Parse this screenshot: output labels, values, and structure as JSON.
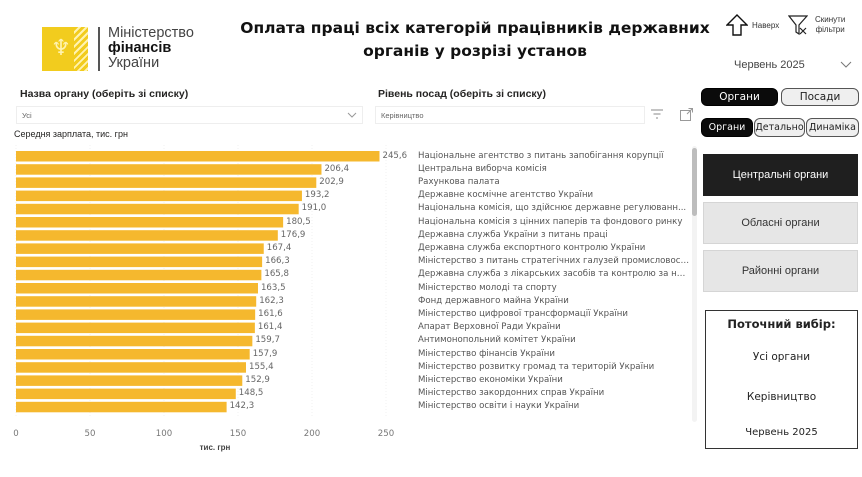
{
  "logo": {
    "line1": "Міністерство",
    "line2": "фінансів",
    "line3": "України"
  },
  "header": {
    "title_line1": "Оплата праці всіх категорій працівників державних",
    "title_line2": "органів у розрізі установ",
    "up_label": "Наверх",
    "reset_label_1": "Скинути",
    "reset_label_2": "фільтри",
    "period": "Червень 2025"
  },
  "filters": {
    "organ_label": "Назва органу (оберіть зі списку)",
    "organ_value": "Усі",
    "level_label": "Рівень посад (оберіть зі списку)",
    "level_value": "Керівництво"
  },
  "right_panel": {
    "toggle_top": [
      {
        "label": "Органи",
        "active": true
      },
      {
        "label": "Посади",
        "active": false
      }
    ],
    "toggle_view": [
      {
        "label": "Органи",
        "active": true
      },
      {
        "label": "Детально",
        "active": false
      },
      {
        "label": "Динаміка",
        "active": false
      }
    ],
    "segments": [
      {
        "label": "Центральні органи",
        "active": true
      },
      {
        "label": "Обласні органи",
        "active": false
      },
      {
        "label": "Районні органи",
        "active": false
      }
    ],
    "current": {
      "title": "Поточний вибір:",
      "organs": "Усі органи",
      "level": "Керівництво",
      "period": "Червень 2025"
    }
  },
  "colors": {
    "bar": "#f5b82e",
    "accent_dark": "#1f1f1f",
    "logo_yellow": "#f2cc1e"
  },
  "chart_data": {
    "type": "bar",
    "orientation": "horizontal",
    "title": "Середня зарплата, тис. грн",
    "xlabel": "тис. грн",
    "ylabel": "",
    "xlim": [
      0,
      250
    ],
    "xticks": [
      0,
      50,
      100,
      150,
      200,
      250
    ],
    "grid": true,
    "categories": [
      "Національне агентство з питань запобігання корупції",
      "Центральна виборча комісія",
      "Рахункова палата",
      "Державне космічне агентство України",
      "Національна комісія, що здійснює державне регулюванн...",
      "Національна комісія з цінних паперів та фондового ринку",
      "Державна служба України з питань праці",
      "Державна служба експортного контролю України",
      "Міністерство з питань стратегічних галузей промисловост...",
      "Державна служба з лікарських засобів та контролю за на...",
      "Міністерство молоді та спорту",
      "Фонд державного майна України",
      "Міністерство цифрової трансформації України",
      "Апарат Верховної Ради України",
      "Антимонопольний комітет України",
      "Міністерство фінансів України",
      "Міністерство розвитку громад та територій України",
      "Міністерство економіки України",
      "Міністерство закордонних справ України",
      "Міністерство освіти і науки України"
    ],
    "values": [
      245.6,
      206.4,
      202.9,
      193.2,
      191.0,
      180.5,
      176.9,
      167.4,
      166.3,
      165.8,
      163.5,
      162.3,
      161.6,
      161.4,
      159.7,
      157.9,
      155.4,
      152.9,
      148.5,
      142.3
    ],
    "value_labels": [
      "245,6",
      "206,4",
      "202,9",
      "193,2",
      "191,0",
      "180,5",
      "176,9",
      "167,4",
      "166,3",
      "165,8",
      "163,5",
      "162,3",
      "161,6",
      "161,4",
      "159,7",
      "157,9",
      "155,4",
      "152,9",
      "148,5",
      "142,3"
    ]
  }
}
